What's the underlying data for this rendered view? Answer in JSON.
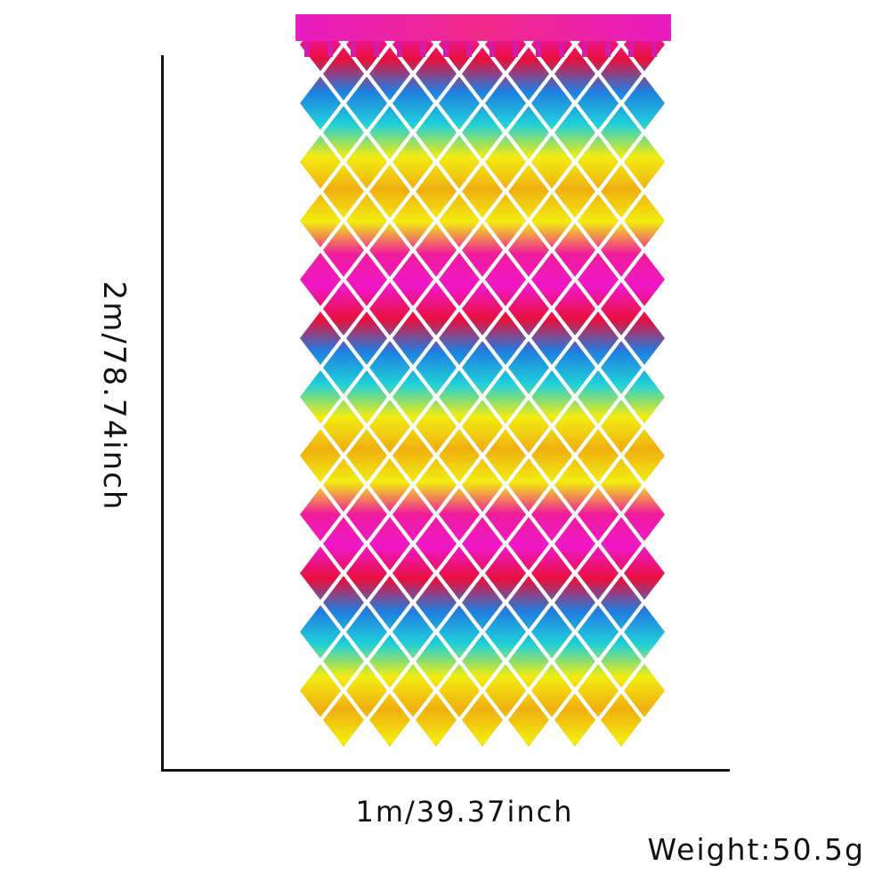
{
  "product": {
    "height_label": "2m/78.74inch",
    "width_label": "1m/39.37inch",
    "weight_label": "Weight:50.5g"
  },
  "image": {
    "subject_icon": "rainbow-diamond-foil-fringe-curtain",
    "band_colors": [
      "#f018c8",
      "#e8103a",
      "#1f7fe0",
      "#20d0d8",
      "#f2ec10",
      "#f0b010",
      "#f01c9c"
    ],
    "header_color": "#e81cc0",
    "axis_color": "#111111"
  }
}
